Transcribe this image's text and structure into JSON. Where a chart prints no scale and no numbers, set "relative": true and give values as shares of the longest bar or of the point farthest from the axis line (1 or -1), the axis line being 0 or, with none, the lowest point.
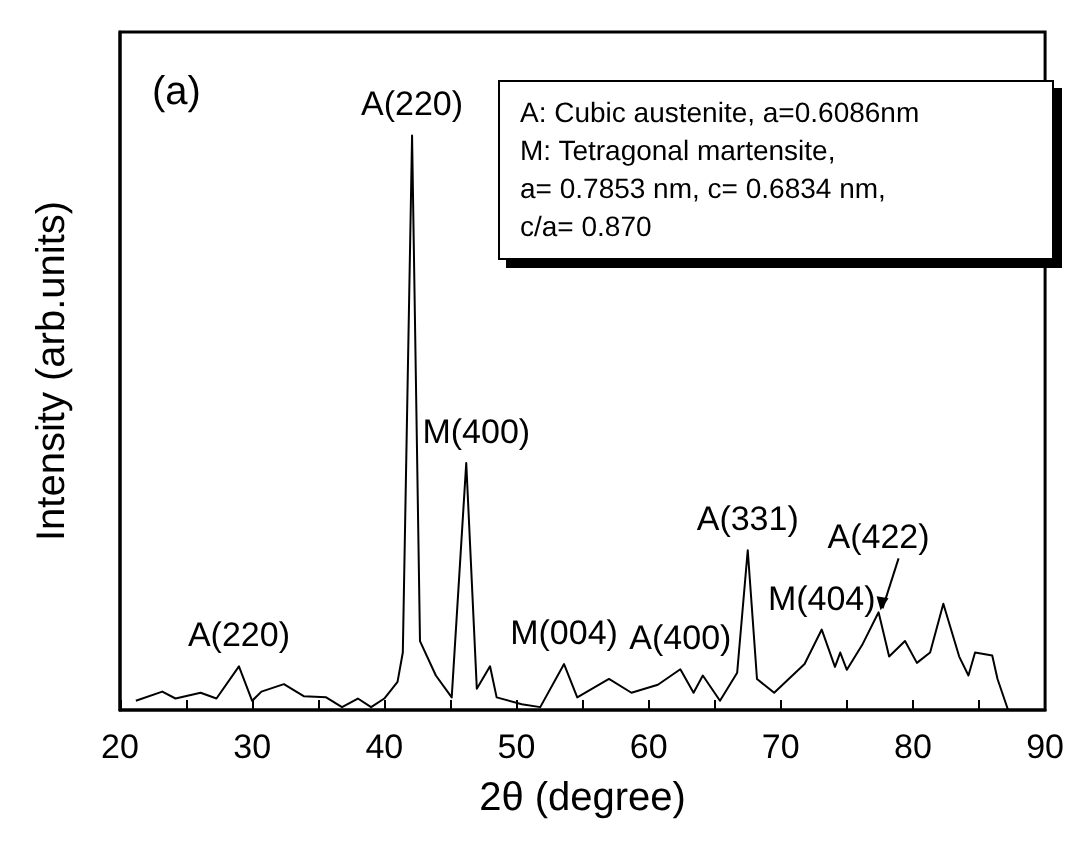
{
  "chart_data": {
    "type": "line",
    "xlabel": "2θ (degree)",
    "ylabel": "Intensity (arb.units)",
    "relative": true,
    "xlim": [
      20,
      90
    ],
    "xticks": [
      20,
      {
        "value": 25,
        "label": null
      },
      30,
      {
        "value": 35,
        "label": null
      },
      40,
      {
        "value": 45,
        "label": null
      },
      50,
      {
        "value": 55,
        "label": null
      },
      60,
      {
        "value": 65,
        "label": null
      },
      70,
      {
        "value": 75,
        "label": null
      },
      80,
      {
        "value": 85,
        "label": null
      },
      90
    ],
    "series": [
      {
        "color": "#000000",
        "x": [
          21.2,
          23.2,
          24.2,
          26.1,
          27.3,
          29.0,
          30.0,
          30.7,
          32.4,
          33.9,
          35.6,
          36.8,
          38.0,
          39.0,
          40.0,
          41.0,
          41.4,
          42.1,
          42.7,
          43.9,
          45.1,
          46.2,
          47.0,
          48.0,
          48.5,
          50.4,
          51.8,
          53.6,
          54.6,
          57.0,
          58.7,
          60.7,
          62.4,
          63.4,
          64.1,
          65.4,
          66.7,
          67.5,
          68.2,
          69.5,
          70.6,
          71.8,
          73.1,
          74.1,
          74.5,
          75.0,
          76.2,
          77.4,
          78.2,
          79.4,
          80.3,
          81.3,
          82.3,
          83.5,
          84.2,
          84.7,
          86.0,
          86.4,
          87.2
        ],
        "values": [
          0.016,
          0.032,
          0.02,
          0.03,
          0.02,
          0.076,
          0.016,
          0.032,
          0.045,
          0.024,
          0.022,
          0.005,
          0.02,
          0.005,
          0.02,
          0.049,
          0.1,
          1.0,
          0.12,
          0.06,
          0.022,
          0.43,
          0.037,
          0.076,
          0.022,
          0.01,
          0.005,
          0.08,
          0.022,
          0.054,
          0.03,
          0.044,
          0.071,
          0.03,
          0.06,
          0.016,
          0.065,
          0.278,
          0.054,
          0.03,
          0.054,
          0.08,
          0.14,
          0.075,
          0.1,
          0.07,
          0.115,
          0.17,
          0.093,
          0.12,
          0.082,
          0.1,
          0.185,
          0.093,
          0.06,
          0.1,
          0.095,
          0.054,
          0.0
        ]
      }
    ],
    "annotations": [
      "(a)",
      "A: Cubic austenite, a=0.6086nm\nM: Tetragonal martensite,\na= 0.7853 nm, c= 0.6834 nm,\nc/a= 0.870",
      {
        "text": "A(220)",
        "x": 29.0,
        "y": 0.076
      },
      {
        "text": "A(220)",
        "x": 42.1,
        "y": 1.0
      },
      {
        "text": "M(400)",
        "x": 46.2,
        "y": 0.43
      },
      {
        "text": "M(004)",
        "x": 53.6,
        "y": 0.08
      },
      {
        "text": "A(400)",
        "x": 62.4,
        "y": 0.071
      },
      {
        "text": "A(331)",
        "x": 67.5,
        "y": 0.278
      },
      {
        "text": "M(404)",
        "x": 73.1,
        "y": 0.14
      },
      {
        "text": "A(422)",
        "x": 77.4,
        "y": 0.17
      }
    ],
    "grid": false,
    "marker": "none",
    "line_style": "solid"
  }
}
